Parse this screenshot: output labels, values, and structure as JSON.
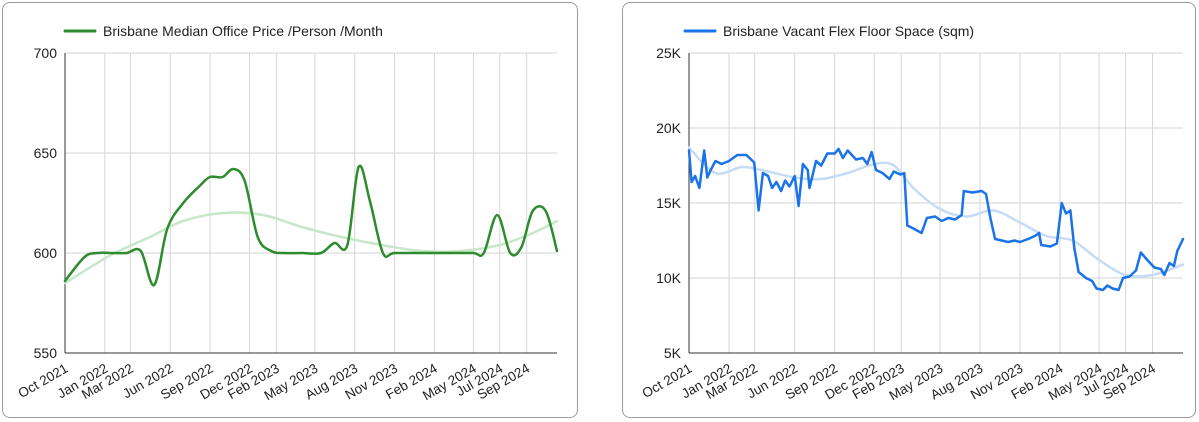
{
  "chart_data": [
    {
      "type": "line",
      "title": "",
      "xlabel": "",
      "ylabel": "",
      "categories": [
        "Oct 2021",
        "Jan 2022",
        "Mar 2022",
        "Jun 2022",
        "Sep 2022",
        "Dec 2022",
        "Feb 2023",
        "May 2023",
        "Aug 2023",
        "Nov 2023",
        "Feb 2024",
        "May 2024",
        "Jul 2024",
        "Sep 2024"
      ],
      "y_ticks": [
        "700",
        "650",
        "600",
        "550"
      ],
      "ylim": [
        550,
        700
      ],
      "grid": true,
      "legend_position": "top-left",
      "series": [
        {
          "name": "Brisbane Median Office Price /Person /Month",
          "color": "#2e8b2e",
          "points": [
            [
              "2021-10-01",
              586
            ],
            [
              "2021-11-15",
              598
            ],
            [
              "2021-12-15",
              600
            ],
            [
              "2022-01-20",
              600
            ],
            [
              "2022-02-20",
              600
            ],
            [
              "2022-03-25",
              601
            ],
            [
              "2022-04-25",
              584
            ],
            [
              "2022-05-25",
              612
            ],
            [
              "2022-07-01",
              625
            ],
            [
              "2022-08-10",
              634
            ],
            [
              "2022-09-01",
              638
            ],
            [
              "2022-09-30",
              638
            ],
            [
              "2022-10-25",
              642
            ],
            [
              "2022-11-20",
              636
            ],
            [
              "2022-12-20",
              608
            ],
            [
              "2023-01-20",
              601
            ],
            [
              "2023-02-20",
              600
            ],
            [
              "2023-04-01",
              600
            ],
            [
              "2023-05-15",
              600
            ],
            [
              "2023-06-15",
              605
            ],
            [
              "2023-07-15",
              604
            ],
            [
              "2023-08-10",
              643
            ],
            [
              "2023-09-05",
              626
            ],
            [
              "2023-10-05",
              600
            ],
            [
              "2023-11-01",
              600
            ],
            [
              "2024-01-10",
              600
            ],
            [
              "2024-03-10",
              600
            ],
            [
              "2024-05-01",
              600
            ],
            [
              "2024-05-25",
              600
            ],
            [
              "2024-06-25",
              619
            ],
            [
              "2024-07-25",
              600
            ],
            [
              "2024-08-20",
              603
            ],
            [
              "2024-09-15",
              621
            ],
            [
              "2024-10-15",
              621
            ],
            [
              "2024-11-10",
              601
            ]
          ]
        },
        {
          "name": "",
          "color": "#c8e6c9",
          "points": [
            [
              "2021-10-01",
              585
            ],
            [
              "2022-01-15",
              599
            ],
            [
              "2022-04-15",
              608
            ],
            [
              "2022-07-01",
              616
            ],
            [
              "2022-10-01",
              620
            ],
            [
              "2023-01-01",
              619
            ],
            [
              "2023-04-01",
              613
            ],
            [
              "2023-07-01",
              608
            ],
            [
              "2023-10-01",
              604
            ],
            [
              "2024-01-01",
              601
            ],
            [
              "2024-04-01",
              601
            ],
            [
              "2024-07-01",
              604
            ],
            [
              "2024-09-15",
              610
            ],
            [
              "2024-11-10",
              616
            ]
          ]
        }
      ]
    },
    {
      "type": "line",
      "title": "",
      "xlabel": "",
      "ylabel": "",
      "categories": [
        "Oct 2021",
        "Jan 2022",
        "Mar 2022",
        "Jun 2022",
        "Sep 2022",
        "Dec 2022",
        "Feb 2023",
        "May 2023",
        "Aug 2023",
        "Nov 2023",
        "Feb 2024",
        "May 2024",
        "Jul 2024",
        "Sep 2024"
      ],
      "y_ticks": [
        "25K",
        "20K",
        "15K",
        "10K",
        "5K"
      ],
      "ylim": [
        5000,
        25000
      ],
      "grid": true,
      "legend_position": "top-left",
      "series": [
        {
          "name": "Brisbane Vacant Flex Floor Space (sqm)",
          "color": "#1a73e8",
          "points": [
            [
              "2021-10-01",
              18500
            ],
            [
              "2021-10-07",
              16400
            ],
            [
              "2021-10-15",
              16800
            ],
            [
              "2021-10-25",
              16000
            ],
            [
              "2021-11-05",
              18500
            ],
            [
              "2021-11-12",
              16700
            ],
            [
              "2021-11-20",
              17200
            ],
            [
              "2021-12-01",
              17800
            ],
            [
              "2021-12-15",
              17600
            ],
            [
              "2022-01-01",
              17800
            ],
            [
              "2022-01-20",
              18200
            ],
            [
              "2022-02-10",
              18200
            ],
            [
              "2022-02-28",
              17700
            ],
            [
              "2022-03-10",
              14500
            ],
            [
              "2022-03-20",
              17000
            ],
            [
              "2022-04-01",
              16800
            ],
            [
              "2022-04-10",
              16000
            ],
            [
              "2022-04-20",
              16400
            ],
            [
              "2022-05-01",
              15800
            ],
            [
              "2022-05-10",
              16500
            ],
            [
              "2022-05-20",
              16100
            ],
            [
              "2022-06-01",
              16800
            ],
            [
              "2022-06-10",
              14800
            ],
            [
              "2022-06-20",
              17600
            ],
            [
              "2022-07-01",
              17200
            ],
            [
              "2022-07-05",
              16000
            ],
            [
              "2022-07-20",
              17800
            ],
            [
              "2022-08-01",
              17500
            ],
            [
              "2022-08-15",
              18300
            ],
            [
              "2022-09-01",
              18300
            ],
            [
              "2022-09-10",
              18600
            ],
            [
              "2022-09-20",
              18000
            ],
            [
              "2022-10-01",
              18500
            ],
            [
              "2022-10-20",
              17900
            ],
            [
              "2022-11-05",
              18000
            ],
            [
              "2022-11-15",
              17600
            ],
            [
              "2022-11-25",
              18400
            ],
            [
              "2022-12-05",
              17200
            ],
            [
              "2022-12-20",
              17000
            ],
            [
              "2023-01-05",
              16600
            ],
            [
              "2023-01-15",
              17100
            ],
            [
              "2023-01-30",
              16900
            ],
            [
              "2023-02-08",
              17000
            ],
            [
              "2023-02-15",
              13500
            ],
            [
              "2023-03-01",
              13300
            ],
            [
              "2023-03-20",
              13000
            ],
            [
              "2023-04-01",
              14000
            ],
            [
              "2023-04-20",
              14100
            ],
            [
              "2023-05-05",
              13800
            ],
            [
              "2023-05-20",
              14000
            ],
            [
              "2023-06-05",
              13900
            ],
            [
              "2023-06-20",
              14200
            ],
            [
              "2023-06-25",
              15800
            ],
            [
              "2023-07-15",
              15700
            ],
            [
              "2023-08-05",
              15800
            ],
            [
              "2023-08-15",
              15600
            ],
            [
              "2023-08-25",
              14000
            ],
            [
              "2023-09-05",
              12600
            ],
            [
              "2023-09-20",
              12500
            ],
            [
              "2023-10-05",
              12400
            ],
            [
              "2023-10-20",
              12500
            ],
            [
              "2023-11-01",
              12400
            ],
            [
              "2023-11-20",
              12600
            ],
            [
              "2023-12-05",
              12800
            ],
            [
              "2023-12-15",
              13000
            ],
            [
              "2023-12-20",
              12200
            ],
            [
              "2024-01-10",
              12100
            ],
            [
              "2024-01-25",
              12300
            ],
            [
              "2024-02-05",
              15000
            ],
            [
              "2024-02-15",
              14300
            ],
            [
              "2024-02-25",
              14500
            ],
            [
              "2024-03-05",
              12000
            ],
            [
              "2024-03-15",
              10400
            ],
            [
              "2024-04-01",
              10000
            ],
            [
              "2024-04-15",
              9800
            ],
            [
              "2024-04-25",
              9300
            ],
            [
              "2024-05-10",
              9200
            ],
            [
              "2024-05-20",
              9500
            ],
            [
              "2024-06-01",
              9300
            ],
            [
              "2024-06-15",
              9200
            ],
            [
              "2024-06-25",
              10000
            ],
            [
              "2024-07-10",
              10100
            ],
            [
              "2024-07-25",
              10500
            ],
            [
              "2024-08-05",
              11700
            ],
            [
              "2024-08-20",
              11200
            ],
            [
              "2024-09-05",
              10700
            ],
            [
              "2024-09-20",
              10600
            ],
            [
              "2024-09-28",
              10200
            ],
            [
              "2024-10-10",
              11000
            ],
            [
              "2024-10-20",
              10800
            ],
            [
              "2024-10-28",
              11800
            ],
            [
              "2024-11-10",
              12600
            ]
          ]
        },
        {
          "name": "",
          "color": "#c6dcf5",
          "points": [
            [
              "2021-10-01",
              18700
            ],
            [
              "2021-12-01",
              17000
            ],
            [
              "2022-02-01",
              17400
            ],
            [
              "2022-04-01",
              17100
            ],
            [
              "2022-06-01",
              16700
            ],
            [
              "2022-08-01",
              16600
            ],
            [
              "2022-10-01",
              17000
            ],
            [
              "2022-12-01",
              17600
            ],
            [
              "2023-01-15",
              17500
            ],
            [
              "2023-03-01",
              16000
            ],
            [
              "2023-05-01",
              14600
            ],
            [
              "2023-07-01",
              14100
            ],
            [
              "2023-09-01",
              14500
            ],
            [
              "2023-11-01",
              13700
            ],
            [
              "2024-01-01",
              12800
            ],
            [
              "2024-03-01",
              12500
            ],
            [
              "2024-05-01",
              11200
            ],
            [
              "2024-07-01",
              10200
            ],
            [
              "2024-09-01",
              10200
            ],
            [
              "2024-11-10",
              10900
            ]
          ]
        }
      ]
    }
  ]
}
